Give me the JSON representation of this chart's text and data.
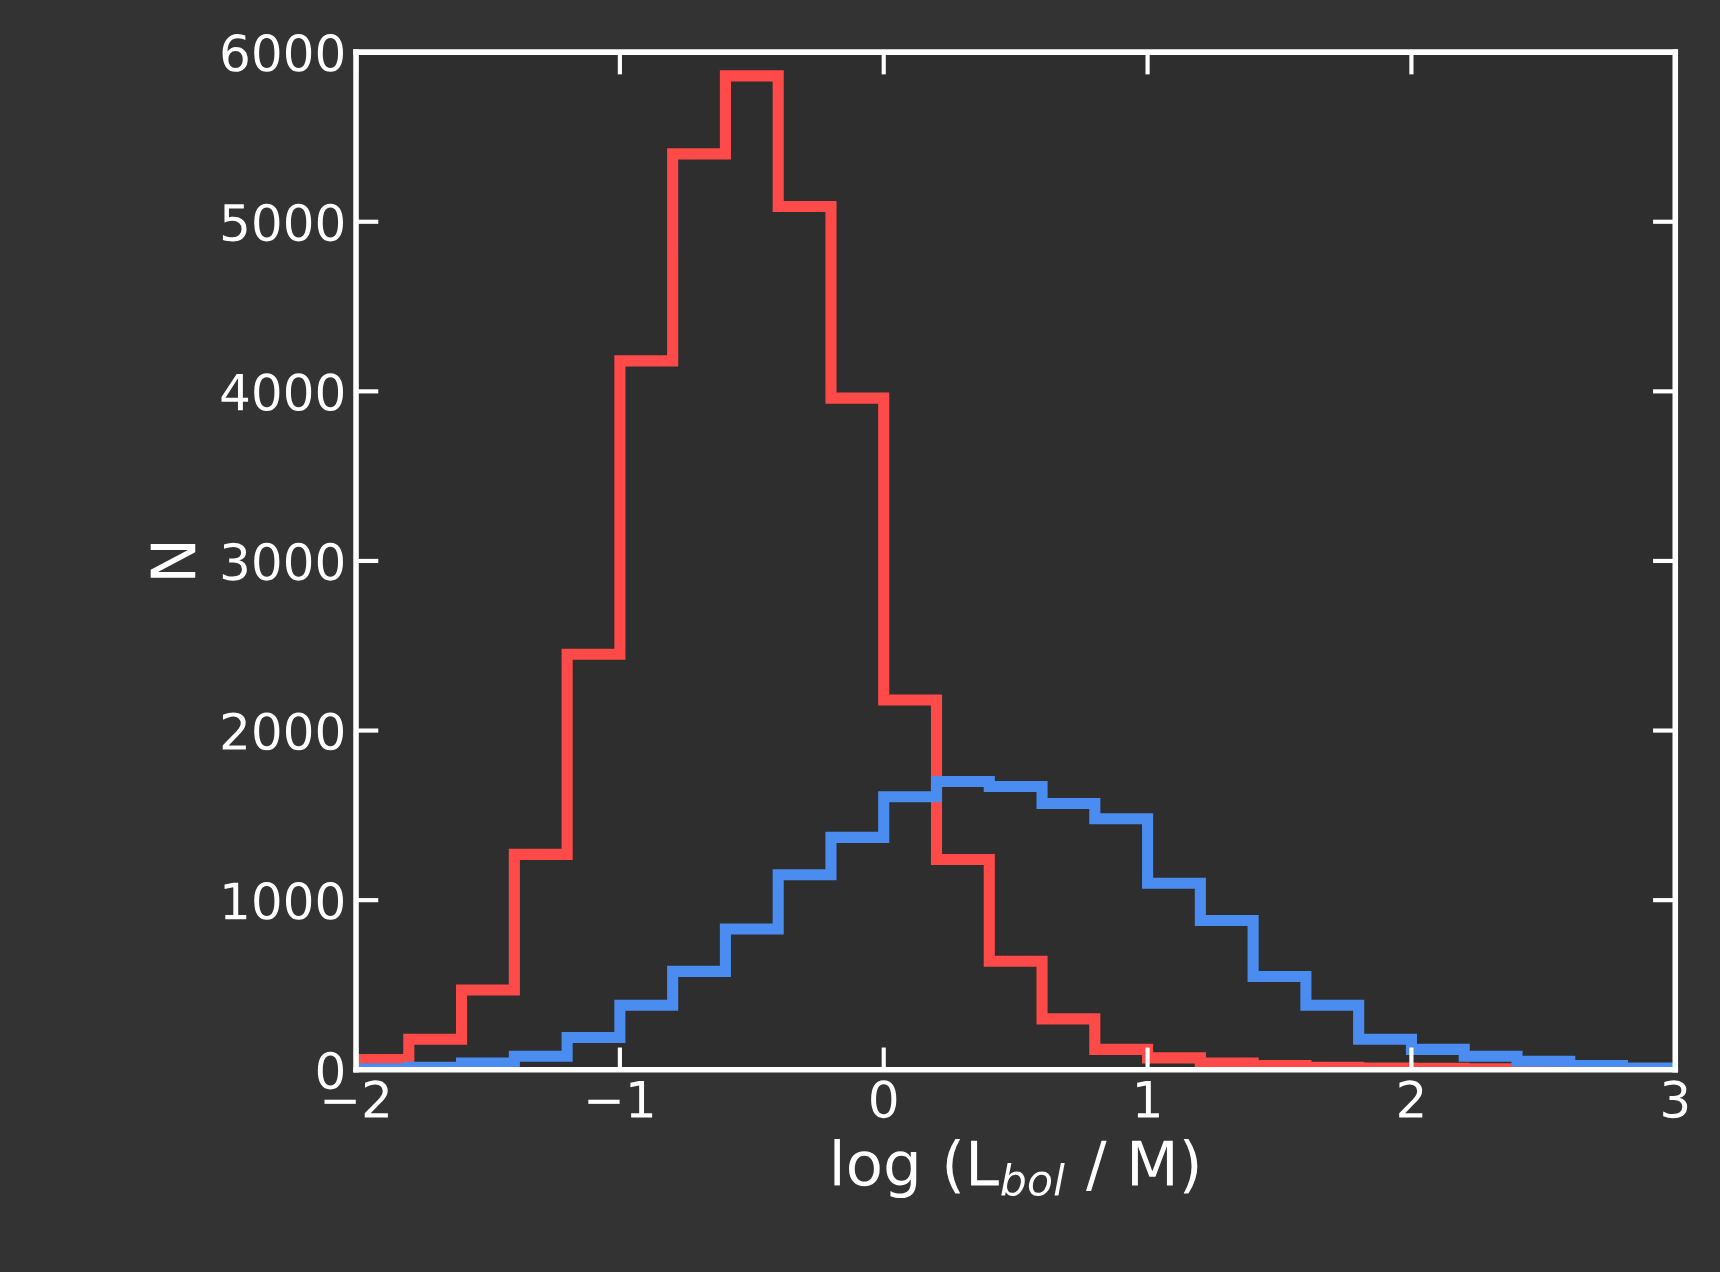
{
  "chart_data": {
    "type": "histogram",
    "xlabel": "log (L$_{bol}$ / M)",
    "ylabel": "N",
    "bins": [
      -2.0,
      -1.8,
      -1.6,
      -1.4,
      -1.2,
      -1.0,
      -0.8,
      -0.6,
      -0.4,
      -0.2,
      0.0,
      0.2,
      0.4,
      0.6,
      0.8,
      1.0,
      1.2,
      1.4,
      1.6,
      1.8,
      2.0,
      2.2,
      2.4,
      2.6,
      2.8,
      3.0
    ],
    "series": [
      {
        "color": "#ff4a4a",
        "values": [
          60,
          180,
          470,
          1270,
          2450,
          4180,
          5400,
          5860,
          5090,
          3960,
          2180,
          1240,
          640,
          300,
          120,
          70,
          40,
          25,
          15,
          10,
          8,
          5,
          2,
          1,
          0
        ]
      },
      {
        "color": "#4a8cf0",
        "values": [
          5,
          15,
          40,
          80,
          190,
          380,
          580,
          830,
          1150,
          1370,
          1610,
          1700,
          1670,
          1570,
          1480,
          1100,
          880,
          550,
          380,
          180,
          120,
          80,
          50,
          25,
          10
        ]
      }
    ],
    "xlim": [
      -2,
      3
    ],
    "ylim": [
      0,
      6000
    ],
    "xticks": [
      {
        "value": -2,
        "label": "−2"
      },
      {
        "value": -1,
        "label": "−1"
      },
      0,
      1,
      2,
      3
    ],
    "yticks": [
      0,
      1000,
      2000,
      3000,
      4000,
      5000,
      6000
    ],
    "grid": false,
    "legend": false
  }
}
